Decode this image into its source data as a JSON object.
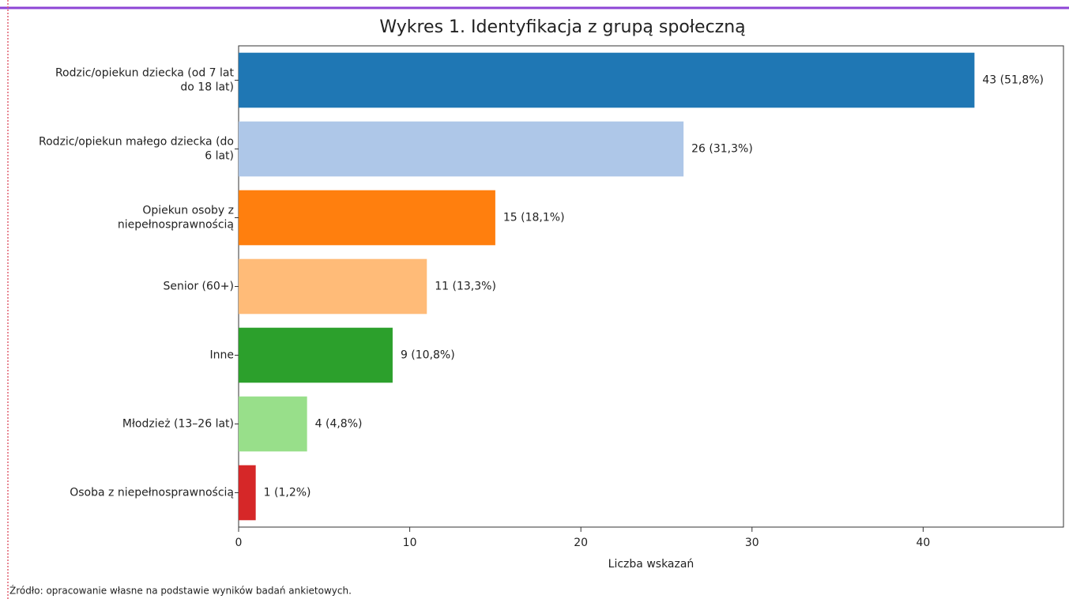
{
  "chart_data": {
    "type": "barh",
    "title": "Wykres 1. Identyfikacja z grupą społeczną",
    "xlabel": "Liczba wskazań",
    "note": "Źródło: opracowanie własne na podstawie wyników badań ankietowych.",
    "categories": [
      "Rodzic/opiekun dziecka (od 7 lat\ndo 18 lat)",
      "Rodzic/opiekun małego dziecka (do\n6 lat)",
      "Opiekun osoby z\nniepełnosprawnością",
      "Senior (60+)",
      "Inne",
      "Młodzież (13–26 lat)",
      "Osoba z niepełnosprawnością"
    ],
    "values": [
      43,
      26,
      15,
      11,
      9,
      4,
      1
    ],
    "value_labels": [
      "43 (51,8%)",
      "26 (31,3%)",
      "15 (18,1%)",
      "11 (13,3%)",
      "9 (10,8%)",
      "4 (4,8%)",
      "1 (1,2%)"
    ],
    "colors": [
      "#1f77b4",
      "#aec7e8",
      "#ff7f0e",
      "#ffbb78",
      "#2ca02c",
      "#98df8a",
      "#d62728"
    ],
    "xlim": [
      0,
      48.2
    ],
    "xticks": [
      0,
      10,
      20,
      30,
      40
    ]
  }
}
